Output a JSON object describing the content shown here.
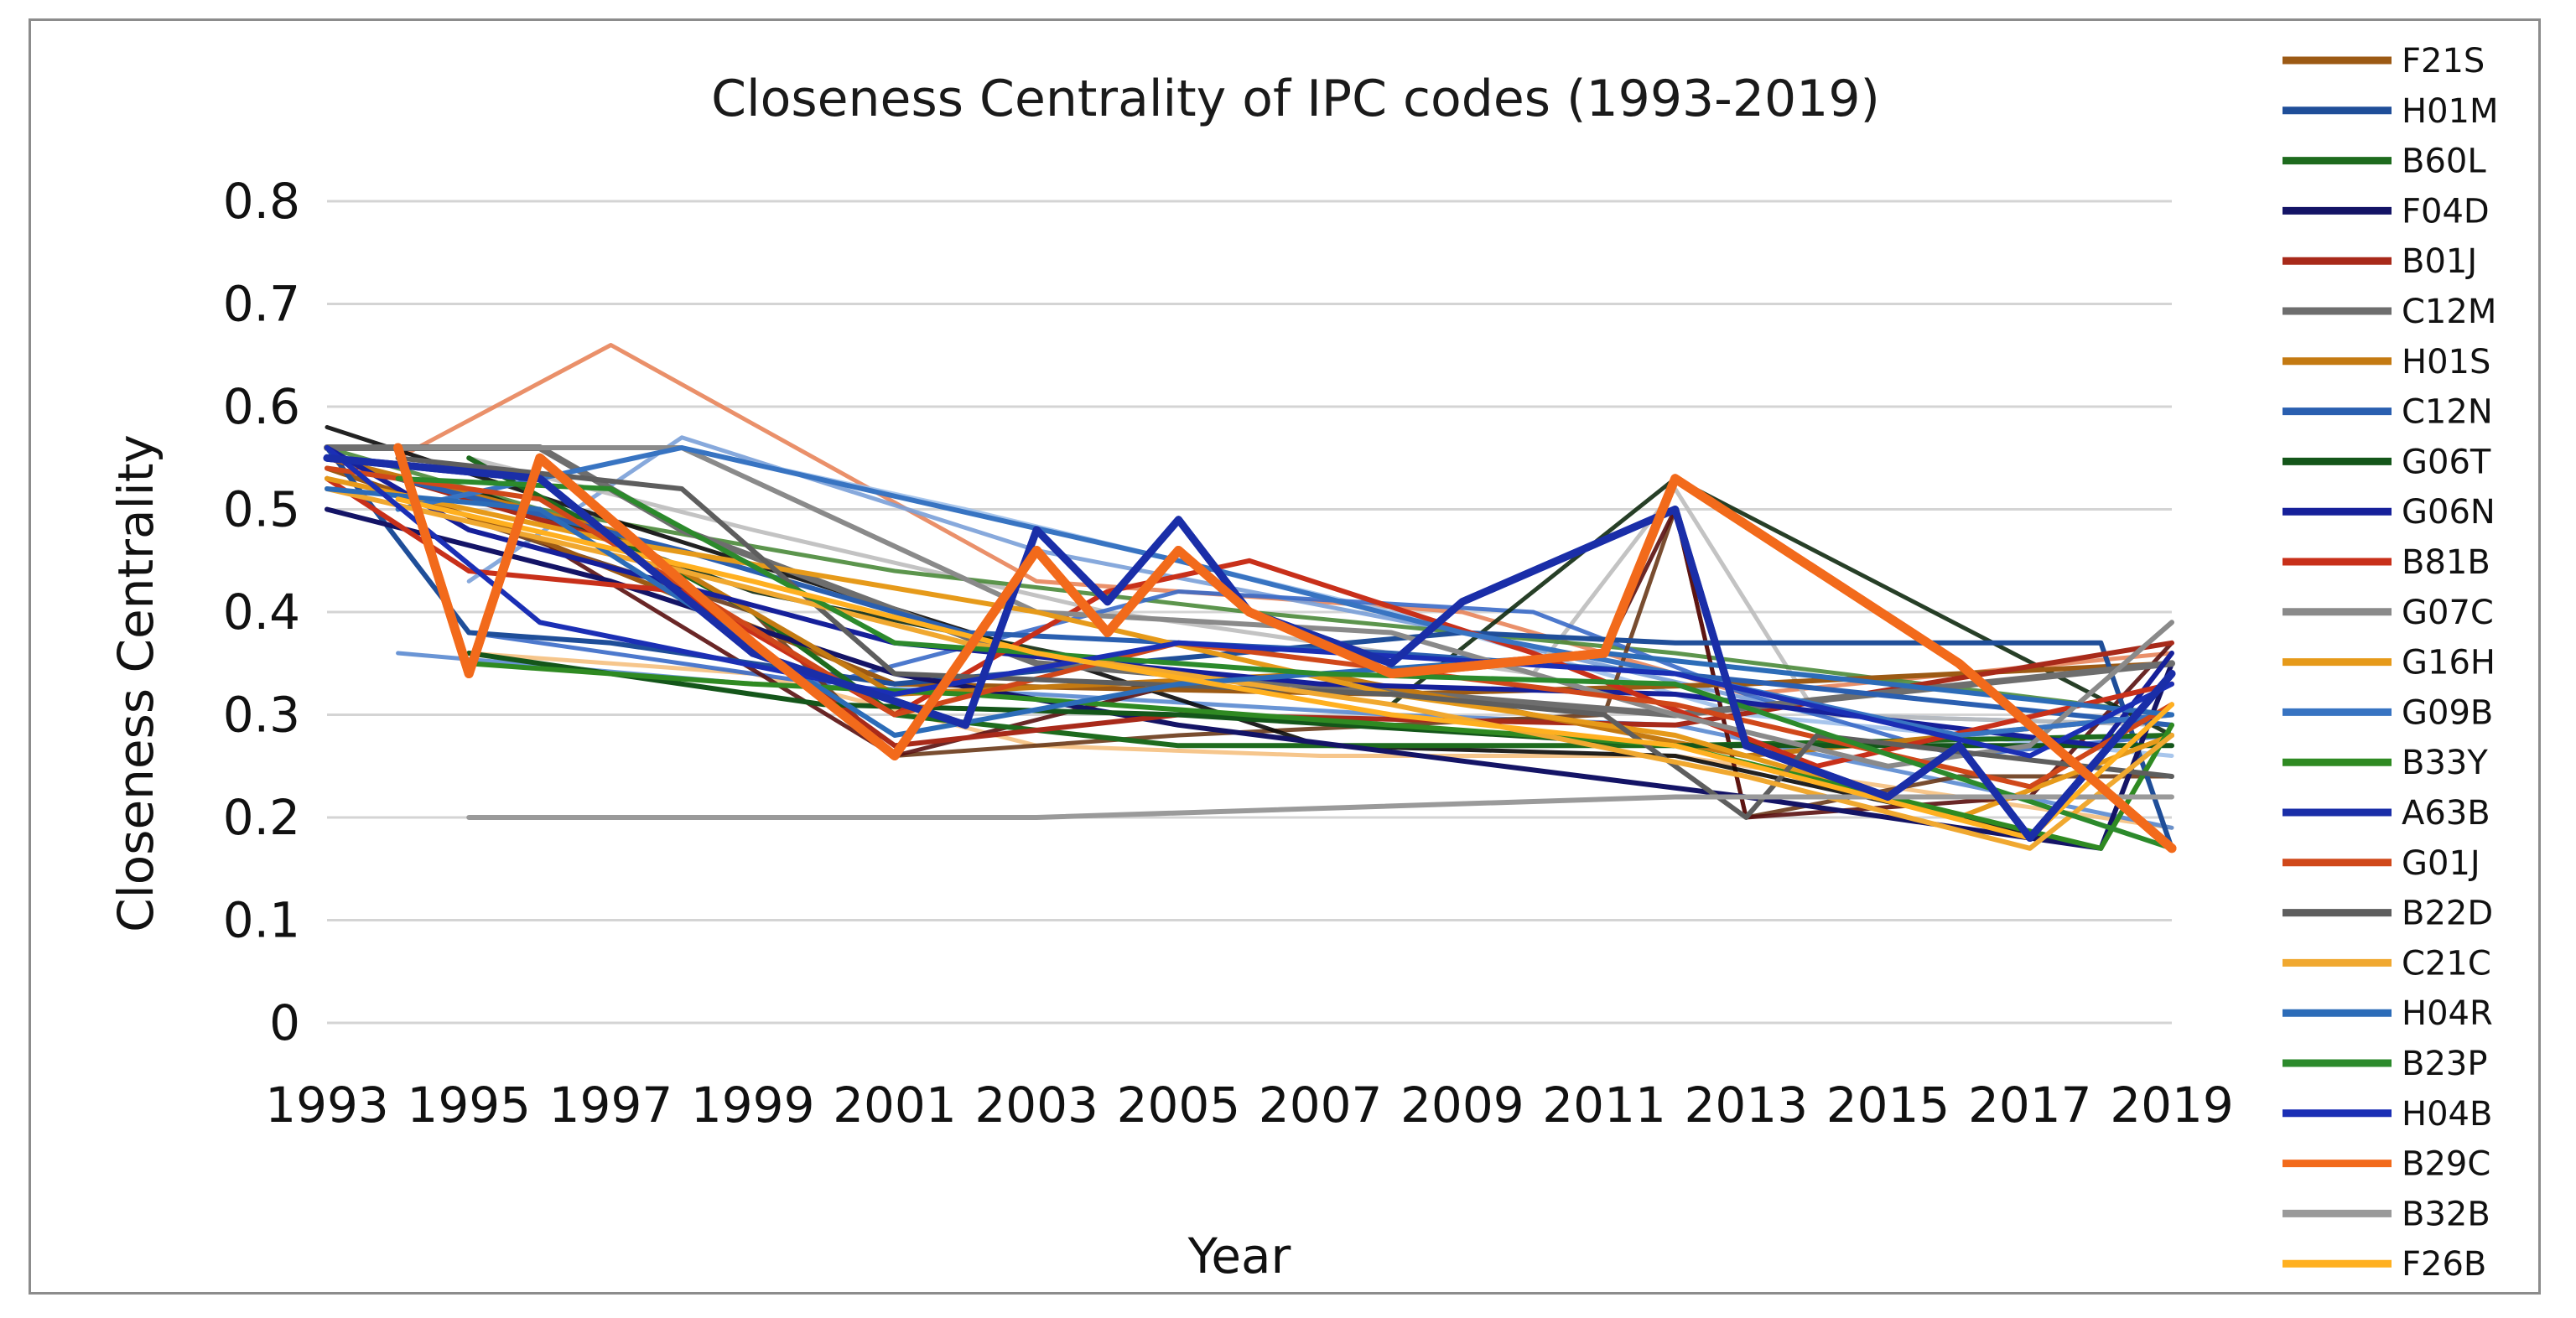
{
  "chart_data": {
    "type": "line",
    "title": "Closeness Centrality of IPC codes (1993-2019)",
    "xlabel": "Year",
    "ylabel": "Closeness Centrality",
    "ylim": [
      0,
      0.8
    ],
    "yticks": [
      0,
      0.1,
      0.2,
      0.3,
      0.4,
      0.5,
      0.6,
      0.7,
      0.8
    ],
    "ytick_labels": [
      "0",
      "0.1",
      "0.2",
      "0.3",
      "0.4",
      "0.5",
      "0.6",
      "0.7",
      "0.8"
    ],
    "x_range": [
      1993,
      2019
    ],
    "xtick_labels": [
      "1993",
      "1995",
      "1997",
      "1999",
      "2001",
      "2003",
      "2005",
      "2007",
      "2009",
      "2011",
      "2013",
      "2015",
      "2017",
      "2019"
    ],
    "grid": true,
    "legend_position": "right",
    "series": [
      {
        "name": "F21S",
        "color": "#9c5a14",
        "points": [
          [
            1993,
            0.54
          ],
          [
            1996,
            0.47
          ],
          [
            2001,
            0.33
          ],
          [
            2008,
            0.32
          ],
          [
            2013,
            0.33
          ],
          [
            2019,
            0.35
          ]
        ]
      },
      {
        "name": "H01M",
        "color": "#1f4e99",
        "points": [
          [
            1993,
            0.56
          ],
          [
            1995,
            0.38
          ],
          [
            1997,
            0.37
          ],
          [
            2001,
            0.33
          ],
          [
            2009,
            0.38
          ],
          [
            2012,
            0.37
          ],
          [
            2018,
            0.37
          ],
          [
            2019,
            0.17
          ]
        ]
      },
      {
        "name": "B60L",
        "color": "#1e6b1e",
        "points": [
          [
            1995,
            0.55
          ],
          [
            1999,
            0.4
          ],
          [
            2001,
            0.3
          ],
          [
            2005,
            0.27
          ],
          [
            2012,
            0.27
          ],
          [
            2019,
            0.28
          ]
        ]
      },
      {
        "name": "F04D",
        "color": "#141466",
        "points": [
          [
            1993,
            0.5
          ],
          [
            1997,
            0.43
          ],
          [
            2001,
            0.34
          ],
          [
            2005,
            0.29
          ],
          [
            2013,
            0.22
          ],
          [
            2018,
            0.17
          ],
          [
            2019,
            0.35
          ]
        ]
      },
      {
        "name": "B01J",
        "color": "#a82a1a",
        "points": [
          [
            1993,
            0.55
          ],
          [
            1997,
            0.47
          ],
          [
            2001,
            0.27
          ],
          [
            2005,
            0.3
          ],
          [
            2012,
            0.29
          ],
          [
            2019,
            0.37
          ]
        ]
      },
      {
        "name": "C12M",
        "color": "#6e6e6e",
        "points": [
          [
            1993,
            0.56
          ],
          [
            1996,
            0.56
          ],
          [
            1998,
            0.48
          ],
          [
            2003,
            0.35
          ],
          [
            2012,
            0.3
          ],
          [
            2019,
            0.35
          ]
        ]
      },
      {
        "name": "H01S",
        "color": "#c47a12",
        "points": [
          [
            1993,
            0.55
          ],
          [
            1997,
            0.48
          ],
          [
            2001,
            0.32
          ],
          [
            2007,
            0.34
          ],
          [
            2013,
            0.26
          ],
          [
            2019,
            0.3
          ]
        ]
      },
      {
        "name": "C12N",
        "color": "#2a5fb0",
        "points": [
          [
            1994,
            0.53
          ],
          [
            1998,
            0.46
          ],
          [
            2002,
            0.38
          ],
          [
            2008,
            0.36
          ],
          [
            2012,
            0.34
          ],
          [
            2019,
            0.29
          ]
        ]
      },
      {
        "name": "G06T",
        "color": "#14561a",
        "points": [
          [
            1995,
            0.36
          ],
          [
            2000,
            0.31
          ],
          [
            2005,
            0.3
          ],
          [
            2012,
            0.27
          ],
          [
            2019,
            0.27
          ]
        ]
      },
      {
        "name": "G06N",
        "color": "#16209a",
        "points": [
          [
            1993,
            0.56
          ],
          [
            1995,
            0.48
          ],
          [
            2001,
            0.37
          ],
          [
            2007,
            0.33
          ],
          [
            2012,
            0.32
          ],
          [
            2018,
            0.27
          ],
          [
            2019,
            0.36
          ]
        ]
      },
      {
        "name": "B81B",
        "color": "#c8301a",
        "points": [
          [
            1993,
            0.53
          ],
          [
            1995,
            0.44
          ],
          [
            1998,
            0.42
          ],
          [
            2001,
            0.3
          ],
          [
            2004,
            0.42
          ],
          [
            2006,
            0.45
          ],
          [
            2010,
            0.36
          ],
          [
            2014,
            0.25
          ],
          [
            2019,
            0.33
          ]
        ]
      },
      {
        "name": "G07C",
        "color": "#8a8a8a",
        "points": [
          [
            1994,
            0.56
          ],
          [
            1998,
            0.56
          ],
          [
            2003,
            0.4
          ],
          [
            2008,
            0.38
          ],
          [
            2012,
            0.3
          ],
          [
            2015,
            0.25
          ],
          [
            2017,
            0.27
          ],
          [
            2019,
            0.39
          ]
        ]
      },
      {
        "name": "G16H",
        "color": "#e69a1a",
        "points": [
          [
            1993,
            0.53
          ],
          [
            1997,
            0.47
          ],
          [
            2003,
            0.4
          ],
          [
            2008,
            0.32
          ],
          [
            2012,
            0.28
          ],
          [
            2016,
            0.2
          ],
          [
            2019,
            0.28
          ]
        ]
      },
      {
        "name": "G09B",
        "color": "#3874c2",
        "points": [
          [
            1994,
            0.5
          ],
          [
            1998,
            0.56
          ],
          [
            2005,
            0.45
          ],
          [
            2009,
            0.38
          ],
          [
            2012,
            0.34
          ],
          [
            2016,
            0.28
          ],
          [
            2019,
            0.3
          ]
        ]
      },
      {
        "name": "B33Y",
        "color": "#2f8a22",
        "points": [
          [
            1995,
            0.35
          ],
          [
            1999,
            0.33
          ],
          [
            2002,
            0.32
          ],
          [
            2008,
            0.29
          ],
          [
            2012,
            0.27
          ],
          [
            2018,
            0.17
          ],
          [
            2019,
            0.29
          ]
        ]
      },
      {
        "name": "A63B",
        "color": "#1a2ea8",
        "points": [
          [
            1993,
            0.55
          ],
          [
            1996,
            0.53
          ],
          [
            1999,
            0.36
          ],
          [
            2002,
            0.29
          ],
          [
            2003,
            0.48
          ],
          [
            2004,
            0.41
          ],
          [
            2005,
            0.49
          ],
          [
            2006,
            0.4
          ],
          [
            2008,
            0.35
          ],
          [
            2009,
            0.41
          ],
          [
            2012,
            0.5
          ],
          [
            2013,
            0.27
          ],
          [
            2015,
            0.22
          ],
          [
            2016,
            0.27
          ],
          [
            2017,
            0.18
          ],
          [
            2019,
            0.34
          ]
        ]
      },
      {
        "name": "G01J",
        "color": "#d0481a",
        "points": [
          [
            1993,
            0.54
          ],
          [
            1996,
            0.51
          ],
          [
            2001,
            0.3
          ],
          [
            2005,
            0.37
          ],
          [
            2012,
            0.31
          ],
          [
            2017,
            0.23
          ],
          [
            2019,
            0.31
          ]
        ]
      },
      {
        "name": "B22D",
        "color": "#5e5e5e",
        "points": [
          [
            1994,
            0.55
          ],
          [
            1998,
            0.52
          ],
          [
            2001,
            0.34
          ],
          [
            2008,
            0.32
          ],
          [
            2011,
            0.3
          ],
          [
            2013,
            0.2
          ],
          [
            2014,
            0.28
          ],
          [
            2019,
            0.24
          ]
        ]
      },
      {
        "name": "C21C",
        "color": "#f0a830",
        "points": [
          [
            1993,
            0.52
          ],
          [
            1998,
            0.44
          ],
          [
            2002,
            0.37
          ],
          [
            2008,
            0.31
          ],
          [
            2013,
            0.24
          ],
          [
            2017,
            0.17
          ],
          [
            2019,
            0.28
          ]
        ]
      },
      {
        "name": "H04R",
        "color": "#2c6cb8",
        "points": [
          [
            1993,
            0.52
          ],
          [
            1996,
            0.5
          ],
          [
            2001,
            0.28
          ],
          [
            2005,
            0.33
          ],
          [
            2011,
            0.36
          ],
          [
            2019,
            0.3
          ]
        ]
      },
      {
        "name": "B23P",
        "color": "#2c8a2c",
        "points": [
          [
            1994,
            0.53
          ],
          [
            1997,
            0.52
          ],
          [
            2001,
            0.37
          ],
          [
            2007,
            0.34
          ],
          [
            2012,
            0.33
          ],
          [
            2019,
            0.17
          ]
        ]
      },
      {
        "name": "H04B",
        "color": "#1b2fb5",
        "points": [
          [
            1993,
            0.56
          ],
          [
            1996,
            0.39
          ],
          [
            2001,
            0.32
          ],
          [
            2005,
            0.37
          ],
          [
            2012,
            0.34
          ],
          [
            2017,
            0.26
          ],
          [
            2019,
            0.33
          ]
        ]
      },
      {
        "name": "B29C",
        "color": "#f26a1b",
        "points": [
          [
            1994,
            0.56
          ],
          [
            1995,
            0.34
          ],
          [
            1996,
            0.55
          ],
          [
            1999,
            0.37
          ],
          [
            2001,
            0.26
          ],
          [
            2003,
            0.46
          ],
          [
            2004,
            0.38
          ],
          [
            2005,
            0.46
          ],
          [
            2006,
            0.4
          ],
          [
            2008,
            0.34
          ],
          [
            2011,
            0.36
          ],
          [
            2012,
            0.53
          ],
          [
            2016,
            0.35
          ],
          [
            2019,
            0.17
          ]
        ]
      },
      {
        "name": "B32B",
        "color": "#9a9a9a",
        "points": [
          [
            1995,
            0.2
          ],
          [
            2003,
            0.2
          ],
          [
            2012,
            0.22
          ],
          [
            2019,
            0.22
          ]
        ]
      },
      {
        "name": "F26B",
        "color": "#ffb020",
        "points": [
          [
            1994,
            0.51
          ],
          [
            1999,
            0.43
          ],
          [
            2003,
            0.36
          ],
          [
            2008,
            0.3
          ],
          [
            2012,
            0.27
          ],
          [
            2017,
            0.18
          ],
          [
            2019,
            0.31
          ]
        ]
      }
    ],
    "extra_lines": [
      {
        "color": "#e8845a",
        "points": [
          [
            1994,
            0.55
          ],
          [
            1997,
            0.66
          ],
          [
            2003,
            0.43
          ],
          [
            2009,
            0.4
          ],
          [
            2013,
            0.32
          ],
          [
            2019,
            0.36
          ]
        ]
      },
      {
        "color": "#7aa0d8",
        "points": [
          [
            1995,
            0.43
          ],
          [
            1998,
            0.57
          ],
          [
            2003,
            0.46
          ],
          [
            2009,
            0.38
          ],
          [
            2014,
            0.3
          ],
          [
            2019,
            0.29
          ]
        ]
      },
      {
        "color": "#9fc0ea",
        "points": [
          [
            1994,
            0.5
          ],
          [
            1998,
            0.56
          ],
          [
            2002,
            0.5
          ],
          [
            2008,
            0.4
          ],
          [
            2013,
            0.3
          ],
          [
            2019,
            0.26
          ]
        ]
      },
      {
        "color": "#bdbdbd",
        "points": [
          [
            1995,
            0.55
          ],
          [
            1999,
            0.48
          ],
          [
            2004,
            0.4
          ],
          [
            2010,
            0.34
          ],
          [
            2012,
            0.52
          ],
          [
            2014,
            0.3
          ],
          [
            2019,
            0.29
          ]
        ]
      },
      {
        "color": "#4a8a3a",
        "points": [
          [
            1993,
            0.56
          ],
          [
            1996,
            0.5
          ],
          [
            2001,
            0.44
          ],
          [
            2006,
            0.4
          ],
          [
            2012,
            0.36
          ],
          [
            2019,
            0.3
          ]
        ]
      },
      {
        "color": "#f5c080",
        "points": [
          [
            1995,
            0.36
          ],
          [
            1999,
            0.34
          ],
          [
            2003,
            0.27
          ],
          [
            2007,
            0.26
          ],
          [
            2012,
            0.26
          ],
          [
            2019,
            0.19
          ]
        ]
      },
      {
        "color": "#5a8ad0",
        "points": [
          [
            1994,
            0.36
          ],
          [
            1999,
            0.33
          ],
          [
            2003,
            0.32
          ],
          [
            2008,
            0.3
          ],
          [
            2012,
            0.29
          ],
          [
            2019,
            0.19
          ]
        ]
      },
      {
        "color": "#3a6ac8",
        "points": [
          [
            1995,
            0.38
          ],
          [
            2000,
            0.33
          ],
          [
            2005,
            0.42
          ],
          [
            2010,
            0.4
          ],
          [
            2013,
            0.32
          ],
          [
            2016,
            0.26
          ],
          [
            2019,
            0.28
          ]
        ]
      },
      {
        "color": "#6a3a1a",
        "points": [
          [
            1995,
            0.49
          ],
          [
            1999,
            0.4
          ],
          [
            2001,
            0.26
          ],
          [
            2005,
            0.28
          ],
          [
            2011,
            0.3
          ],
          [
            2012,
            0.5
          ],
          [
            2013,
            0.2
          ],
          [
            2016,
            0.24
          ],
          [
            2019,
            0.24
          ]
        ]
      },
      {
        "color": "#5a1010",
        "points": [
          [
            1993,
            0.54
          ],
          [
            1996,
            0.47
          ],
          [
            2001,
            0.26
          ],
          [
            2005,
            0.33
          ],
          [
            2011,
            0.36
          ],
          [
            2012,
            0.5
          ],
          [
            2013,
            0.2
          ],
          [
            2017,
            0.22
          ],
          [
            2019,
            0.37
          ]
        ]
      },
      {
        "color": "#0a0a0a",
        "points": [
          [
            1993,
            0.58
          ],
          [
            1997,
            0.49
          ],
          [
            2003,
            0.36
          ],
          [
            2007,
            0.27
          ],
          [
            2012,
            0.26
          ],
          [
            2018,
            0.17
          ],
          [
            2019,
            0.35
          ]
        ]
      },
      {
        "color": "#0f2a10",
        "points": [
          [
            1995,
            0.52
          ],
          [
            1999,
            0.42
          ],
          [
            2004,
            0.35
          ],
          [
            2008,
            0.31
          ],
          [
            2012,
            0.53
          ],
          [
            2019,
            0.28
          ]
        ]
      }
    ]
  }
}
